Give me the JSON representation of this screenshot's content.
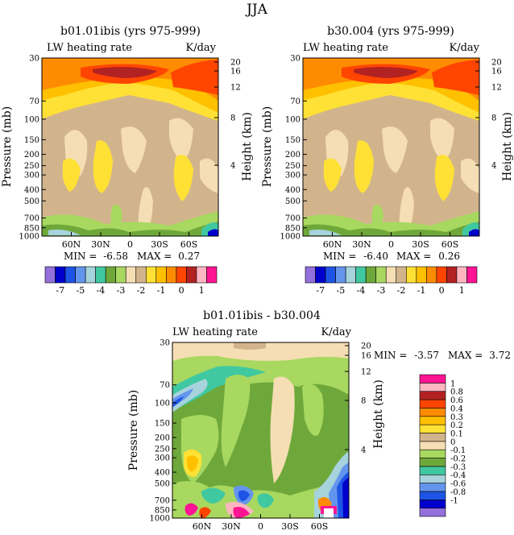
{
  "figure": {
    "title": "JJA"
  },
  "chart_data": [
    {
      "type": "heatmap",
      "title": "b01.01ibis (yrs 975-999)",
      "subtitle_left": "LW heating rate",
      "subtitle_right": "K/day",
      "ylabel": "Pressure (mb)",
      "ylabel_right": "Height (km)",
      "x_ticks": [
        "60N",
        "30N",
        "0",
        "30S",
        "60S"
      ],
      "x_tick_values": [
        60,
        30,
        0,
        -30,
        -60
      ],
      "xlim": [
        90,
        -90
      ],
      "y_ticks": [
        "30",
        "70",
        "100",
        "150",
        "200",
        "250",
        "300",
        "400",
        "500",
        "700",
        "850",
        "1000"
      ],
      "y_tick_values": [
        30,
        70,
        100,
        150,
        200,
        250,
        300,
        400,
        500,
        700,
        850,
        1000
      ],
      "ylim": [
        1000,
        30
      ],
      "y_scale": "log",
      "height_ticks": [
        "20",
        "16",
        "12",
        "8",
        "4"
      ],
      "stats": {
        "min_label": "MIN =",
        "min": "-6.58",
        "max_label": "MAX =",
        "max": "0.27"
      },
      "colorbar": {
        "orientation": "horizontal",
        "colors": [
          "#9370db",
          "#0000cd",
          "#1e54e6",
          "#6495ed",
          "#a6d3dc",
          "#40c8a0",
          "#6fa83a",
          "#a8d860",
          "#f5deb3",
          "#d2b48c",
          "#ffe135",
          "#ffc000",
          "#ff8c00",
          "#ff4500",
          "#b22222",
          "#ffb6c1",
          "#ff1493"
        ],
        "labels": [
          "-7",
          "-5",
          "-4",
          "-3",
          "-2",
          "-1",
          "0",
          "1"
        ]
      }
    },
    {
      "type": "heatmap",
      "title": "b30.004 (yrs 975-999)",
      "subtitle_left": "LW heating rate",
      "subtitle_right": "K/day",
      "ylabel": "Pressure (mb)",
      "ylabel_right": "Height (km)",
      "x_ticks": [
        "60N",
        "30N",
        "0",
        "30S",
        "60S"
      ],
      "x_tick_values": [
        60,
        30,
        0,
        -30,
        -60
      ],
      "xlim": [
        90,
        -90
      ],
      "y_ticks": [
        "30",
        "70",
        "100",
        "150",
        "200",
        "250",
        "300",
        "400",
        "500",
        "700",
        "850",
        "1000"
      ],
      "y_tick_values": [
        30,
        70,
        100,
        150,
        200,
        250,
        300,
        400,
        500,
        700,
        850,
        1000
      ],
      "ylim": [
        1000,
        30
      ],
      "y_scale": "log",
      "height_ticks": [
        "20",
        "16",
        "12",
        "8",
        "4"
      ],
      "stats": {
        "min_label": "MIN =",
        "min": "-6.40",
        "max_label": "MAX =",
        "max": "0.26"
      },
      "colorbar": {
        "orientation": "horizontal",
        "colors": [
          "#9370db",
          "#0000cd",
          "#1e54e6",
          "#6495ed",
          "#a6d3dc",
          "#40c8a0",
          "#6fa83a",
          "#a8d860",
          "#f5deb3",
          "#d2b48c",
          "#ffe135",
          "#ffc000",
          "#ff8c00",
          "#ff4500",
          "#b22222",
          "#ffb6c1",
          "#ff1493"
        ],
        "labels": [
          "-7",
          "-5",
          "-4",
          "-3",
          "-2",
          "-1",
          "0",
          "1"
        ]
      }
    },
    {
      "type": "heatmap",
      "title": "b01.01ibis - b30.004",
      "subtitle_left": "LW heating rate",
      "subtitle_right": "K/day",
      "ylabel": "Pressure (mb)",
      "ylabel_right": "Height (km)",
      "x_ticks": [
        "60N",
        "30N",
        "0",
        "30S",
        "60S"
      ],
      "x_tick_values": [
        60,
        30,
        0,
        -30,
        -60
      ],
      "xlim": [
        90,
        -90
      ],
      "y_ticks": [
        "30",
        "70",
        "100",
        "150",
        "200",
        "250",
        "300",
        "400",
        "500",
        "700",
        "850",
        "1000"
      ],
      "y_tick_values": [
        30,
        70,
        100,
        150,
        200,
        250,
        300,
        400,
        500,
        700,
        850,
        1000
      ],
      "ylim": [
        1000,
        30
      ],
      "y_scale": "log",
      "height_ticks": [
        "20",
        "16",
        "12",
        "8",
        "4"
      ],
      "stats": {
        "min_label": "MIN =",
        "min": "-3.57",
        "max_label": "MAX =",
        "max": "3.72"
      },
      "colorbar": {
        "orientation": "vertical",
        "colors": [
          "#9370db",
          "#0000cd",
          "#1e54e6",
          "#6495ed",
          "#a6d3dc",
          "#40c8a0",
          "#6fa83a",
          "#a8d860",
          "#f5deb3",
          "#d2b48c",
          "#ffe135",
          "#ffc000",
          "#ff8c00",
          "#ff4500",
          "#b22222",
          "#ffb6c1",
          "#ff1493"
        ],
        "labels": [
          "1",
          "0.8",
          "0.6",
          "0.4",
          "0.3",
          "0.2",
          "0.1",
          "0",
          "-0.1",
          "-0.2",
          "-0.3",
          "-0.4",
          "-0.6",
          "-0.8",
          "-1"
        ]
      }
    }
  ]
}
